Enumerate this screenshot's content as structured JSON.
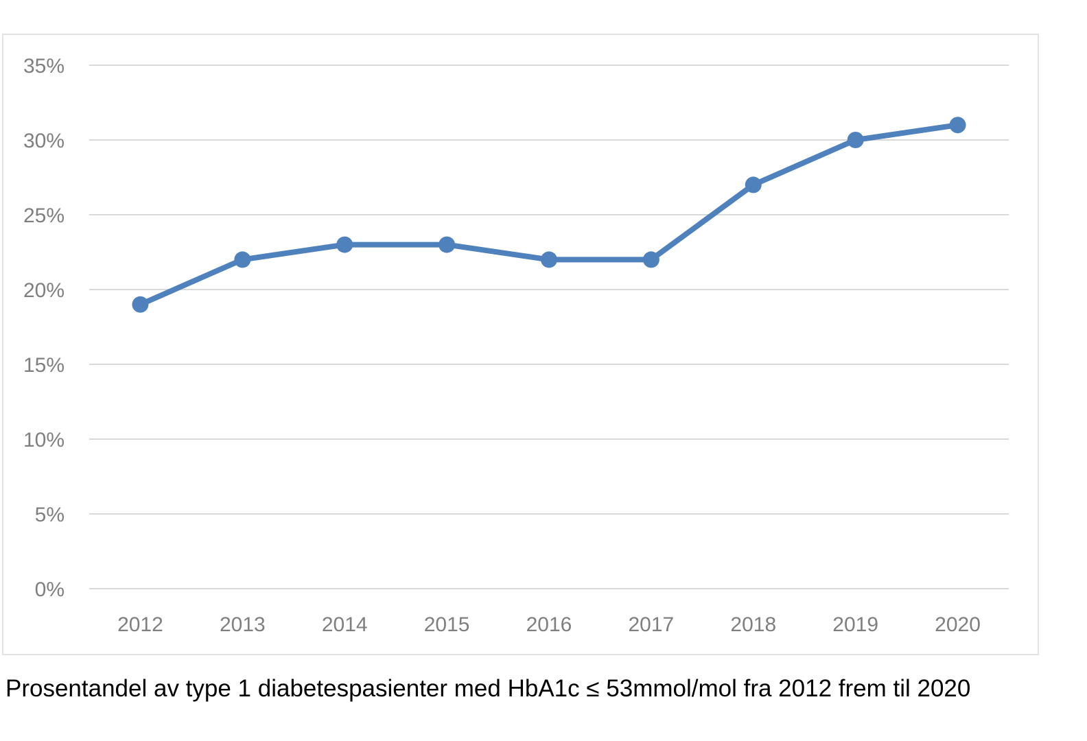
{
  "caption": "Prosentandel av type 1 diabetespasienter med HbA1c ≤ 53mmol/mol fra 2012 frem til 2020",
  "chart_data": {
    "type": "line",
    "title": "",
    "xlabel": "",
    "ylabel": "",
    "categories": [
      "2012",
      "2013",
      "2014",
      "2015",
      "2016",
      "2017",
      "2018",
      "2019",
      "2020"
    ],
    "series": [
      {
        "values": [
          19,
          22,
          23,
          23,
          22,
          22,
          27,
          30,
          31
        ],
        "color": "#4f81bd"
      }
    ],
    "ylim": [
      0,
      35
    ],
    "yticks": [
      0,
      5,
      10,
      15,
      20,
      25,
      30,
      35
    ],
    "ytick_labels": [
      "0%",
      "5%",
      "10%",
      "15%",
      "20%",
      "25%",
      "30%",
      "35%"
    ],
    "grid": true,
    "legend": "none",
    "colors": {
      "line": "#4f81bd",
      "grid": "#d9d9d9",
      "tick_text": "#7f7f7f",
      "frame": "#e2e2e2"
    }
  }
}
